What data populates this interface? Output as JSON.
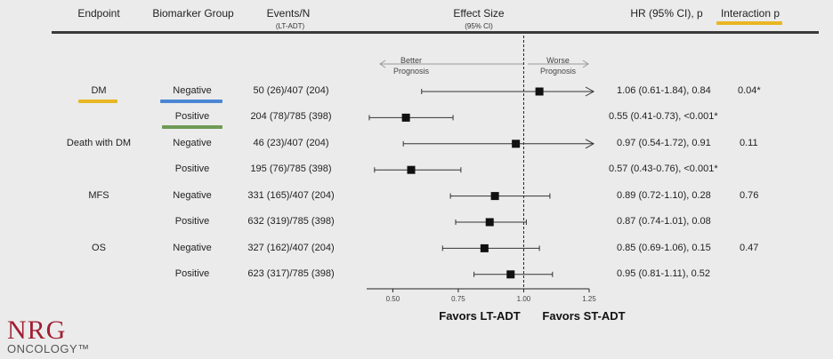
{
  "header": {
    "endpoint": "Endpoint",
    "biomarker_group": "Biomarker Group",
    "events_n": "Events/N",
    "events_n_sub": "(LT-ADT)",
    "effect_size": "Effect Size",
    "effect_size_sub": "(95% CI)",
    "hr": "HR (95% CI), p",
    "interaction": "Interaction p"
  },
  "colors": {
    "dm_underline": "#e8b623",
    "interaction_underline": "#e8b623",
    "negative_underline": "#4a86d4",
    "positive_underline": "#6e9a55",
    "logo_red": "#a01f33"
  },
  "arrows": {
    "better": "Better",
    "better2": "Prognosis",
    "worse": "Worse",
    "worse2": "Prognosis"
  },
  "endpoints": [
    "DM",
    "Death with DM",
    "MFS",
    "OS"
  ],
  "interactions": [
    "0.04*",
    "0.11",
    "0.76",
    "0.47"
  ],
  "rows": [
    {
      "group": "Negative",
      "events": "50 (26)/407 (204)",
      "hr": "1.06 (0.61-1.84), 0.84"
    },
    {
      "group": "Positive",
      "events": "204 (78)/785 (398)",
      "hr": "0.55 (0.41-0.73), <0.001*"
    },
    {
      "group": "Negative",
      "events": "46 (23)/407 (204)",
      "hr": "0.97 (0.54-1.72), 0.91"
    },
    {
      "group": "Positive",
      "events": "195 (76)/785 (398)",
      "hr": "0.57 (0.43-0.76), <0.001*"
    },
    {
      "group": "Negative",
      "events": "331 (165)/407 (204)",
      "hr": "0.89 (0.72-1.10), 0.28"
    },
    {
      "group": "Positive",
      "events": "632 (319)/785 (398)",
      "hr": "0.87 (0.74-1.01), 0.08"
    },
    {
      "group": "Negative",
      "events": "327 (162)/407 (204)",
      "hr": "0.85 (0.69-1.06), 0.15"
    },
    {
      "group": "Positive",
      "events": "623 (317)/785 (398)",
      "hr": "0.95 (0.81-1.11), 0.52"
    }
  ],
  "chart_data": {
    "type": "forest",
    "xlim": [
      0.4,
      1.25
    ],
    "reference_line": 1.0,
    "x_ticks": [
      0.5,
      0.75,
      1.0,
      1.25
    ],
    "x_tick_labels": [
      "0.50",
      "0.75",
      "1.00",
      "1.25"
    ],
    "favors_left": "Favors LT-ADT",
    "favors_right": "Favors ST-ADT",
    "points": [
      {
        "est": 1.06,
        "lo": 0.61,
        "hi": 1.84
      },
      {
        "est": 0.55,
        "lo": 0.41,
        "hi": 0.73
      },
      {
        "est": 0.97,
        "lo": 0.54,
        "hi": 1.72
      },
      {
        "est": 0.57,
        "lo": 0.43,
        "hi": 0.76
      },
      {
        "est": 0.89,
        "lo": 0.72,
        "hi": 1.1
      },
      {
        "est": 0.87,
        "lo": 0.74,
        "hi": 1.01
      },
      {
        "est": 0.85,
        "lo": 0.69,
        "hi": 1.06
      },
      {
        "est": 0.95,
        "lo": 0.81,
        "hi": 1.11
      }
    ]
  },
  "logo": {
    "line1": "NRG",
    "line2": "ONCOLOGY™"
  }
}
